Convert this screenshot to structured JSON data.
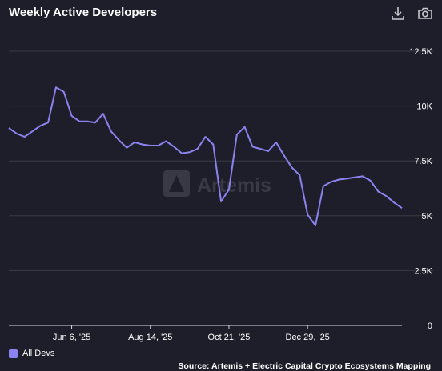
{
  "header": {
    "title": "Weekly Active Developers",
    "download_icon": "download-icon",
    "camera_icon": "camera-icon"
  },
  "watermark": "Artemis",
  "colors": {
    "background": "#1e1e2a",
    "line": "#8b84f0",
    "grid": "#3a3a48",
    "text": "#ffffff"
  },
  "footer": {
    "source": "Source: Artemis + Electric Capital Crypto Ecosystems Mapping"
  },
  "chart_data": {
    "type": "line",
    "title": "Weekly Active Developers",
    "xlabel": "",
    "ylabel": "",
    "ylim": [
      0,
      12500
    ],
    "y_ticks": [
      0,
      2500,
      5000,
      7500,
      10000,
      12500
    ],
    "y_tick_labels": [
      "0",
      "2.5K",
      "5K",
      "7.5K",
      "10K",
      "12.5K"
    ],
    "x_tick_labels": [
      "Jun 6, '25",
      "Aug 14, '25",
      "Oct 21, '25",
      "Dec 29, '25"
    ],
    "x_tick_index": [
      8,
      18,
      28,
      38
    ],
    "grid": true,
    "legend_position": "bottom-left",
    "series": [
      {
        "name": "All Devs",
        "color": "#8b84f0",
        "values": [
          9000,
          8750,
          8600,
          8850,
          9100,
          9250,
          10850,
          10650,
          9550,
          9300,
          9300,
          9250,
          9650,
          8850,
          8450,
          8100,
          8350,
          8250,
          8200,
          8200,
          8400,
          8150,
          7850,
          7900,
          8050,
          8600,
          8250,
          5650,
          6200,
          8700,
          9050,
          8150,
          8050,
          7950,
          8350,
          7750,
          7200,
          6850,
          5050,
          4550,
          6350,
          6550,
          6650,
          6700,
          6750,
          6800,
          6600,
          6100,
          5900,
          5600,
          5350
        ]
      }
    ]
  }
}
